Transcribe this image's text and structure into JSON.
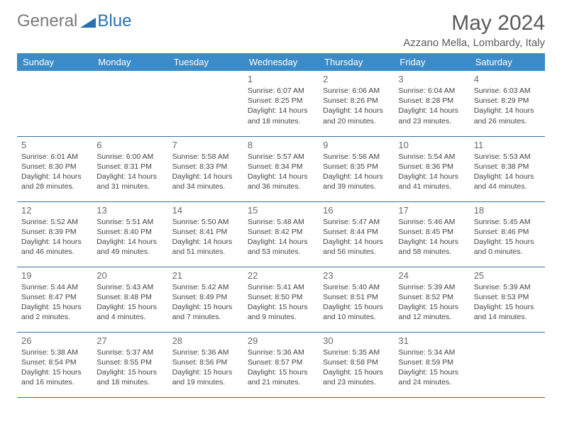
{
  "logo": {
    "text1": "General",
    "text2": "Blue"
  },
  "title": "May 2024",
  "location": "Azzano Mella, Lombardy, Italy",
  "colors": {
    "header_bg": "#3b8bc9",
    "header_fg": "#ffffff",
    "row_border": "#3b6fa0",
    "logo_gray": "#7a7a7a",
    "logo_blue": "#2a6fb0"
  },
  "weekdays": [
    "Sunday",
    "Monday",
    "Tuesday",
    "Wednesday",
    "Thursday",
    "Friday",
    "Saturday"
  ],
  "weeks": [
    [
      null,
      null,
      null,
      {
        "n": "1",
        "sr": "Sunrise: 6:07 AM",
        "ss": "Sunset: 8:25 PM",
        "dl": "Daylight: 14 hours and 18 minutes."
      },
      {
        "n": "2",
        "sr": "Sunrise: 6:06 AM",
        "ss": "Sunset: 8:26 PM",
        "dl": "Daylight: 14 hours and 20 minutes."
      },
      {
        "n": "3",
        "sr": "Sunrise: 6:04 AM",
        "ss": "Sunset: 8:28 PM",
        "dl": "Daylight: 14 hours and 23 minutes."
      },
      {
        "n": "4",
        "sr": "Sunrise: 6:03 AM",
        "ss": "Sunset: 8:29 PM",
        "dl": "Daylight: 14 hours and 26 minutes."
      }
    ],
    [
      {
        "n": "5",
        "sr": "Sunrise: 6:01 AM",
        "ss": "Sunset: 8:30 PM",
        "dl": "Daylight: 14 hours and 28 minutes."
      },
      {
        "n": "6",
        "sr": "Sunrise: 6:00 AM",
        "ss": "Sunset: 8:31 PM",
        "dl": "Daylight: 14 hours and 31 minutes."
      },
      {
        "n": "7",
        "sr": "Sunrise: 5:58 AM",
        "ss": "Sunset: 8:33 PM",
        "dl": "Daylight: 14 hours and 34 minutes."
      },
      {
        "n": "8",
        "sr": "Sunrise: 5:57 AM",
        "ss": "Sunset: 8:34 PM",
        "dl": "Daylight: 14 hours and 36 minutes."
      },
      {
        "n": "9",
        "sr": "Sunrise: 5:56 AM",
        "ss": "Sunset: 8:35 PM",
        "dl": "Daylight: 14 hours and 39 minutes."
      },
      {
        "n": "10",
        "sr": "Sunrise: 5:54 AM",
        "ss": "Sunset: 8:36 PM",
        "dl": "Daylight: 14 hours and 41 minutes."
      },
      {
        "n": "11",
        "sr": "Sunrise: 5:53 AM",
        "ss": "Sunset: 8:38 PM",
        "dl": "Daylight: 14 hours and 44 minutes."
      }
    ],
    [
      {
        "n": "12",
        "sr": "Sunrise: 5:52 AM",
        "ss": "Sunset: 8:39 PM",
        "dl": "Daylight: 14 hours and 46 minutes."
      },
      {
        "n": "13",
        "sr": "Sunrise: 5:51 AM",
        "ss": "Sunset: 8:40 PM",
        "dl": "Daylight: 14 hours and 49 minutes."
      },
      {
        "n": "14",
        "sr": "Sunrise: 5:50 AM",
        "ss": "Sunset: 8:41 PM",
        "dl": "Daylight: 14 hours and 51 minutes."
      },
      {
        "n": "15",
        "sr": "Sunrise: 5:48 AM",
        "ss": "Sunset: 8:42 PM",
        "dl": "Daylight: 14 hours and 53 minutes."
      },
      {
        "n": "16",
        "sr": "Sunrise: 5:47 AM",
        "ss": "Sunset: 8:44 PM",
        "dl": "Daylight: 14 hours and 56 minutes."
      },
      {
        "n": "17",
        "sr": "Sunrise: 5:46 AM",
        "ss": "Sunset: 8:45 PM",
        "dl": "Daylight: 14 hours and 58 minutes."
      },
      {
        "n": "18",
        "sr": "Sunrise: 5:45 AM",
        "ss": "Sunset: 8:46 PM",
        "dl": "Daylight: 15 hours and 0 minutes."
      }
    ],
    [
      {
        "n": "19",
        "sr": "Sunrise: 5:44 AM",
        "ss": "Sunset: 8:47 PM",
        "dl": "Daylight: 15 hours and 2 minutes."
      },
      {
        "n": "20",
        "sr": "Sunrise: 5:43 AM",
        "ss": "Sunset: 8:48 PM",
        "dl": "Daylight: 15 hours and 4 minutes."
      },
      {
        "n": "21",
        "sr": "Sunrise: 5:42 AM",
        "ss": "Sunset: 8:49 PM",
        "dl": "Daylight: 15 hours and 7 minutes."
      },
      {
        "n": "22",
        "sr": "Sunrise: 5:41 AM",
        "ss": "Sunset: 8:50 PM",
        "dl": "Daylight: 15 hours and 9 minutes."
      },
      {
        "n": "23",
        "sr": "Sunrise: 5:40 AM",
        "ss": "Sunset: 8:51 PM",
        "dl": "Daylight: 15 hours and 10 minutes."
      },
      {
        "n": "24",
        "sr": "Sunrise: 5:39 AM",
        "ss": "Sunset: 8:52 PM",
        "dl": "Daylight: 15 hours and 12 minutes."
      },
      {
        "n": "25",
        "sr": "Sunrise: 5:39 AM",
        "ss": "Sunset: 8:53 PM",
        "dl": "Daylight: 15 hours and 14 minutes."
      }
    ],
    [
      {
        "n": "26",
        "sr": "Sunrise: 5:38 AM",
        "ss": "Sunset: 8:54 PM",
        "dl": "Daylight: 15 hours and 16 minutes."
      },
      {
        "n": "27",
        "sr": "Sunrise: 5:37 AM",
        "ss": "Sunset: 8:55 PM",
        "dl": "Daylight: 15 hours and 18 minutes."
      },
      {
        "n": "28",
        "sr": "Sunrise: 5:36 AM",
        "ss": "Sunset: 8:56 PM",
        "dl": "Daylight: 15 hours and 19 minutes."
      },
      {
        "n": "29",
        "sr": "Sunrise: 5:36 AM",
        "ss": "Sunset: 8:57 PM",
        "dl": "Daylight: 15 hours and 21 minutes."
      },
      {
        "n": "30",
        "sr": "Sunrise: 5:35 AM",
        "ss": "Sunset: 8:58 PM",
        "dl": "Daylight: 15 hours and 23 minutes."
      },
      {
        "n": "31",
        "sr": "Sunrise: 5:34 AM",
        "ss": "Sunset: 8:59 PM",
        "dl": "Daylight: 15 hours and 24 minutes."
      },
      null
    ]
  ]
}
